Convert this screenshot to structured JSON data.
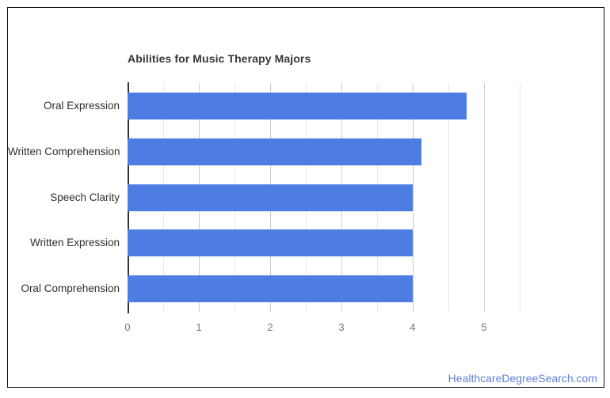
{
  "chart_data": {
    "type": "bar",
    "orientation": "horizontal",
    "title": "Abilities for Music Therapy Majors",
    "categories": [
      "Oral Expression",
      "Written Comprehension",
      "Speech Clarity",
      "Written Expression",
      "Oral Comprehension"
    ],
    "values": [
      4.75,
      4.12,
      4.0,
      4.0,
      4.0
    ],
    "xlim": [
      0,
      5.5
    ],
    "x_ticks": [
      0,
      1,
      2,
      3,
      4,
      5
    ],
    "minor_tick_interval": 0.5,
    "grid": true,
    "legend": "none",
    "bar_color": "#4d7de2",
    "major_gridline_color": "#cccccc",
    "minor_gridline_color": "#e8e8e8",
    "axis_line_color": "#333333",
    "title_color": "#363636",
    "label_color": "#2f2f2f",
    "tick_label_color": "#757575"
  },
  "footer": {
    "attribution": "HealthcareDegreeSearch.com",
    "color": "#6083d3"
  }
}
